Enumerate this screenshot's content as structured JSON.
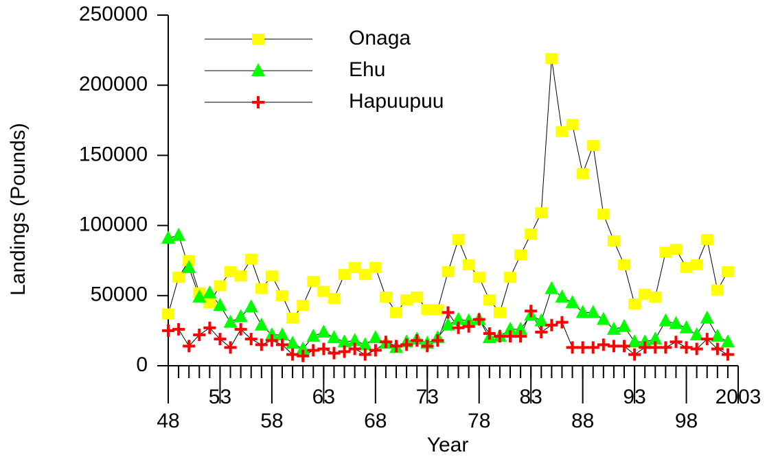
{
  "chart_data": {
    "type": "line",
    "xlabel": "Year",
    "ylabel": "Landings (Pounds)",
    "x": [
      1948,
      1949,
      1950,
      1951,
      1952,
      1953,
      1954,
      1955,
      1956,
      1957,
      1958,
      1959,
      1960,
      1961,
      1962,
      1963,
      1964,
      1965,
      1966,
      1967,
      1968,
      1969,
      1970,
      1971,
      1972,
      1973,
      1974,
      1975,
      1976,
      1977,
      1978,
      1979,
      1980,
      1981,
      1982,
      1983,
      1984,
      1985,
      1986,
      1987,
      1988,
      1989,
      1990,
      1991,
      1992,
      1993,
      1994,
      1995,
      1996,
      1997,
      1998,
      1999,
      2000,
      2001,
      2002
    ],
    "series": [
      {
        "name": "Onaga",
        "color": "#ffff00",
        "marker": "square",
        "values": [
          37000,
          63000,
          75000,
          52000,
          45000,
          57000,
          67000,
          64000,
          76000,
          55000,
          64000,
          50000,
          34000,
          43000,
          60000,
          53000,
          48000,
          65000,
          70000,
          65000,
          70000,
          49000,
          38000,
          47000,
          49000,
          40000,
          40000,
          67000,
          90000,
          72000,
          63000,
          47000,
          38000,
          63000,
          79000,
          94000,
          109000,
          219000,
          167000,
          172000,
          137000,
          157000,
          108000,
          89000,
          72000,
          44000,
          51000,
          49000,
          81000,
          83000,
          70000,
          72000,
          90000,
          54000,
          67000
        ]
      },
      {
        "name": "Ehu",
        "color": "#00ff00",
        "marker": "triangle",
        "values": [
          91000,
          93000,
          70000,
          49000,
          52000,
          43000,
          31000,
          35000,
          42000,
          29000,
          22000,
          22000,
          16000,
          12000,
          21000,
          24000,
          20000,
          17000,
          18000,
          15000,
          20000,
          16000,
          13000,
          17000,
          19000,
          16000,
          20000,
          29000,
          33000,
          32000,
          33000,
          20000,
          21000,
          26000,
          26000,
          36000,
          32000,
          55000,
          49000,
          45000,
          38000,
          38000,
          33000,
          26000,
          28000,
          17000,
          17000,
          19000,
          32000,
          30000,
          27000,
          22000,
          34000,
          21000,
          17000
        ]
      },
      {
        "name": "Hapuupuu",
        "color": "#ff0000",
        "marker": "plus",
        "values": [
          25000,
          26000,
          14000,
          22000,
          27000,
          19000,
          13000,
          26000,
          19000,
          15000,
          18000,
          15000,
          8000,
          7000,
          11000,
          12000,
          9000,
          10000,
          12000,
          8000,
          11000,
          17000,
          14000,
          15000,
          18000,
          14000,
          18000,
          38000,
          27000,
          28000,
          33000,
          23000,
          21000,
          21000,
          21000,
          39000,
          24000,
          29000,
          31000,
          13000,
          13000,
          13000,
          15000,
          14000,
          14000,
          8000,
          13000,
          13000,
          13000,
          17000,
          13000,
          12000,
          19000,
          12000,
          8000
        ]
      }
    ],
    "xlim": [
      1948,
      2003
    ],
    "xticks": [
      {
        "value": 1948,
        "label": "48"
      },
      {
        "value": 1953,
        "label": "53"
      },
      {
        "value": 1958,
        "label": "58"
      },
      {
        "value": 1963,
        "label": "63"
      },
      {
        "value": 1968,
        "label": "68"
      },
      {
        "value": 1973,
        "label": "73"
      },
      {
        "value": 1978,
        "label": "78"
      },
      {
        "value": 1983,
        "label": "83"
      },
      {
        "value": 1988,
        "label": "88"
      },
      {
        "value": 1993,
        "label": "93"
      },
      {
        "value": 1998,
        "label": "98"
      },
      {
        "value": 2003,
        "label": "2003"
      }
    ],
    "ylim": [
      0,
      250000
    ],
    "yticks": [
      0,
      50000,
      100000,
      150000,
      200000,
      250000
    ],
    "legend": "top-left"
  }
}
